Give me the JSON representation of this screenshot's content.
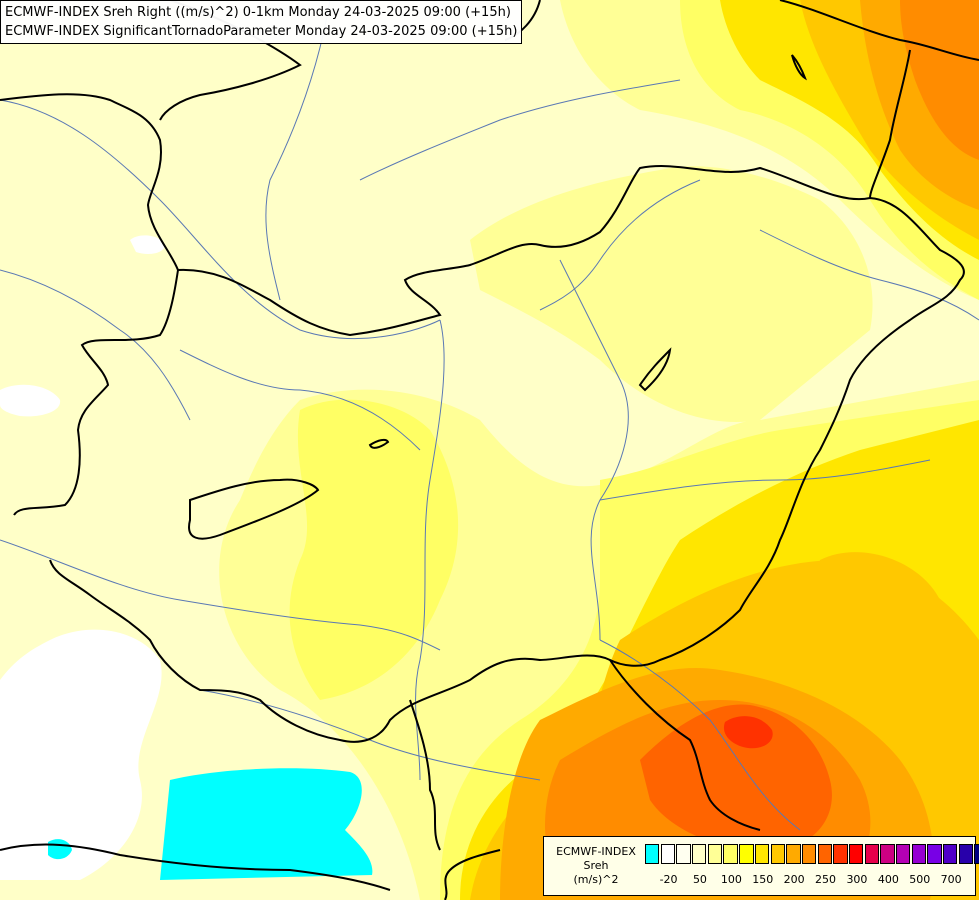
{
  "title": {
    "line1": "ECMWF-INDEX Sreh Right ((m/s)^2) 0-1km Monday 24-03-2025 09:00 (+15h)",
    "line2": "ECMWF-INDEX SignificantTornadoParameter Monday 24-03-2025 09:00 (+15h)"
  },
  "legend": {
    "title1": "ECMWF-INDEX",
    "title2": "Sreh",
    "title3": "(m/s)^2",
    "colors": [
      "#00ffff",
      "#ffffff",
      "#fffff0",
      "#ffffc8",
      "#ffff96",
      "#ffff64",
      "#ffff00",
      "#ffe600",
      "#ffc800",
      "#ffaa00",
      "#ff8c00",
      "#ff6400",
      "#ff3200",
      "#ff0000",
      "#e6004b",
      "#cd0082",
      "#b400b4",
      "#9600d2",
      "#7800e6",
      "#5000c8",
      "#2800aa",
      "#000080"
    ],
    "tick_labels": [
      "-20",
      "50",
      "100",
      "150",
      "200",
      "250",
      "300",
      "400",
      "500",
      "700"
    ]
  },
  "map": {
    "fill_colors": {
      "pale": "#ffffc8",
      "light": "#ffff96",
      "yellow": "#ffff64",
      "gold": "#ffe600",
      "amber": "#ffc800",
      "orange": "#ffaa00",
      "dark_orange": "#ff8c00",
      "red_orange": "#ff6400",
      "red": "#ff3200",
      "cyan": "#00ffff",
      "white": "#ffffff",
      "border": "#000000",
      "river": "#5a78b4"
    }
  }
}
